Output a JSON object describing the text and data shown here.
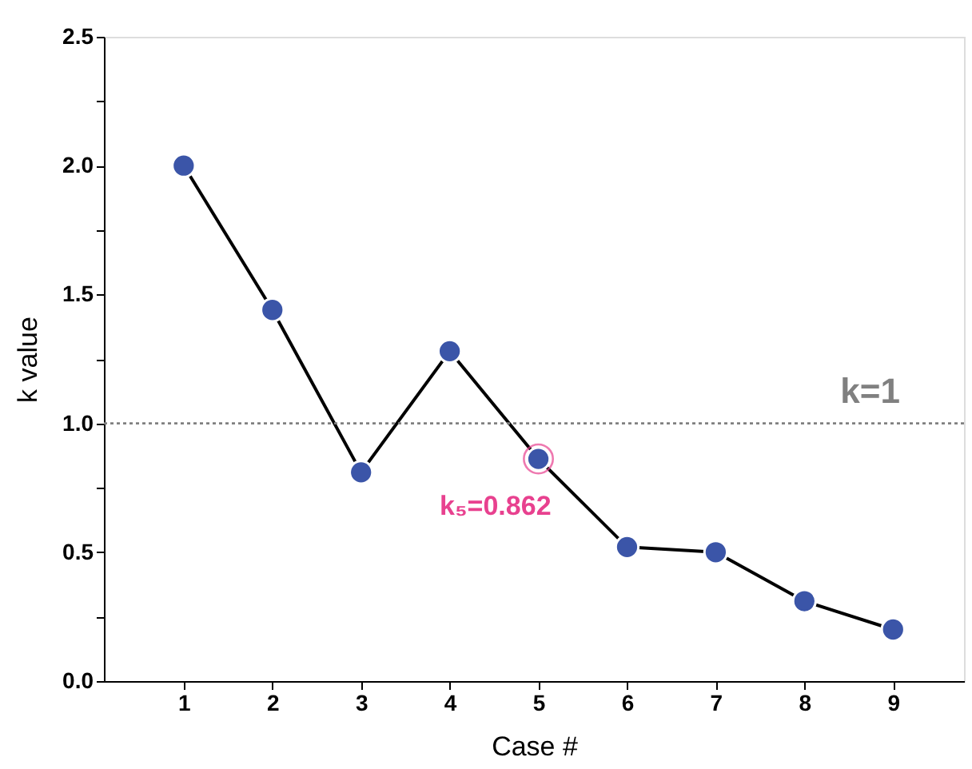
{
  "chart_data": {
    "type": "line",
    "xlabel": "Case #",
    "ylabel": "k value",
    "x": [
      1,
      2,
      3,
      4,
      5,
      6,
      7,
      8,
      9
    ],
    "series": [
      {
        "color": "#3b55a8",
        "values": [
          2.0,
          1.44,
          0.81,
          1.28,
          0.862,
          0.52,
          0.5,
          0.31,
          0.2
        ]
      }
    ],
    "xlim": [
      0.1,
      9.8
    ],
    "xticks": [
      1,
      2,
      3,
      4,
      5,
      6,
      7,
      8,
      9
    ],
    "ylim": [
      0,
      2.5
    ],
    "yticks": [
      {
        "value": 0,
        "label": "0.0"
      },
      {
        "value": 0.25,
        "label": null
      },
      0.5,
      {
        "value": 0.75,
        "label": null
      },
      {
        "value": 1,
        "label": "1.0"
      },
      {
        "value": 1.25,
        "label": null
      },
      1.5,
      {
        "value": 1.75,
        "label": null
      },
      {
        "value": 2,
        "label": "2.0"
      },
      {
        "value": 2.25,
        "label": null
      },
      2.5
    ],
    "ref_lines": [
      {
        "axis": "y",
        "value": 1.0,
        "label": "k=1",
        "color": "#808080",
        "line_style": "dotted"
      }
    ],
    "annotations": [
      {
        "text": "k₅=0.862",
        "x": 5,
        "y": 0.862
      }
    ],
    "marker": "circle",
    "line_style": "solid"
  }
}
